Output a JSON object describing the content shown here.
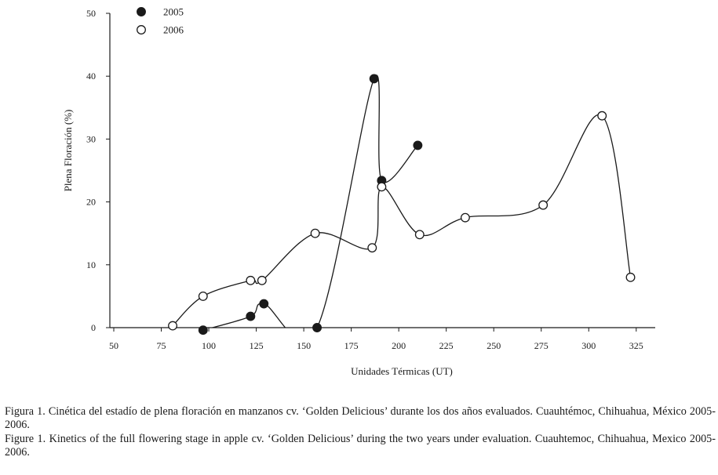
{
  "chart_data": {
    "type": "line",
    "xlabel": "Unidades Térmicas (UT)",
    "ylabel": "Plena Floración (%)",
    "xlim": [
      50,
      335
    ],
    "ylim": [
      0,
      50
    ],
    "xticks": [
      50,
      75,
      100,
      125,
      150,
      175,
      200,
      225,
      250,
      275,
      300,
      325
    ],
    "yticks": [
      0,
      10,
      20,
      30,
      40,
      50
    ],
    "grid": false,
    "legend": "top-left",
    "series": [
      {
        "name": "2005",
        "marker": "filled",
        "color": "#1a1a1a",
        "points": [
          {
            "x": 97,
            "y": -0.4
          },
          {
            "x": 122,
            "y": 1.8
          },
          {
            "x": 129,
            "y": 3.8
          },
          {
            "x": 157,
            "y": 0
          },
          {
            "x": 187,
            "y": 39.6
          },
          {
            "x": 191,
            "y": 23.4
          },
          {
            "x": 210,
            "y": 29
          }
        ]
      },
      {
        "name": "2006",
        "marker": "open",
        "color": "#1a1a1a",
        "points": [
          {
            "x": 81,
            "y": 0.3
          },
          {
            "x": 97,
            "y": 5
          },
          {
            "x": 122,
            "y": 7.5
          },
          {
            "x": 128,
            "y": 7.5
          },
          {
            "x": 156,
            "y": 15
          },
          {
            "x": 186,
            "y": 12.7
          },
          {
            "x": 191,
            "y": 22.4
          },
          {
            "x": 211,
            "y": 14.8
          },
          {
            "x": 235,
            "y": 17.5
          },
          {
            "x": 276,
            "y": 19.5
          },
          {
            "x": 307,
            "y": 33.7
          },
          {
            "x": 322,
            "y": 8
          }
        ]
      }
    ]
  },
  "captions": {
    "es": "Figura 1. Cinética del estadío de plena floración en manzanos cv. ‘Golden Delicious’ durante los dos años evaluados. Cuauhtémoc, Chihuahua, México 2005-2006.",
    "en": "Figure 1. Kinetics of the full flowering stage in apple cv. ‘Golden Delicious’ during the two years under evaluation. Cuauhtemoc, Chihuahua, Mexico 2005-2006."
  }
}
